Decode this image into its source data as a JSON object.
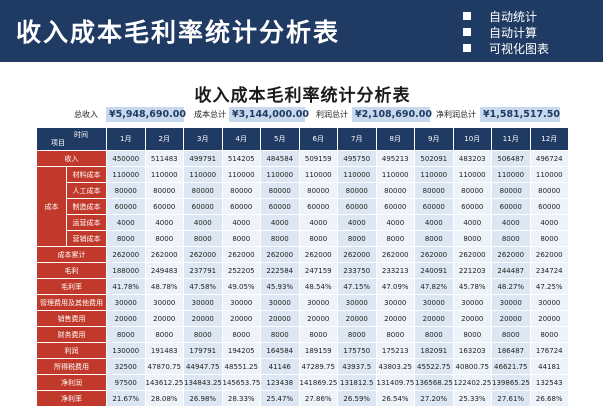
{
  "banner": {
    "title": "收入成本毛利率统计分析表",
    "features": [
      "自动统计",
      "自动计算",
      "可视化图表"
    ]
  },
  "sheet": {
    "title": "收入成本毛利率统计分析表",
    "summary": {
      "revenue_label": "总收入",
      "revenue_value": "¥5,948,690.00",
      "cost_label": "成本总计",
      "cost_value": "¥3,144,000.00",
      "gross_label": "利润总计",
      "gross_value": "¥2,108,690.00",
      "net_label": "净利润总计",
      "net_value": "¥1,581,517.50"
    },
    "header": {
      "corner_top": "时间",
      "corner_bottom": "项目",
      "months": [
        "1月",
        "2月",
        "3月",
        "4月",
        "5月",
        "6月",
        "7月",
        "8月",
        "9月",
        "10月",
        "11月",
        "12月"
      ]
    },
    "cost_group_label": "成本",
    "rows": [
      {
        "label": "收入",
        "values": [
          "450000",
          "511483",
          "499791",
          "514205",
          "484584",
          "509159",
          "495750",
          "495213",
          "502091",
          "483203",
          "506487",
          "496724"
        ]
      },
      {
        "label": "材料成本",
        "values": [
          "110000",
          "110000",
          "110000",
          "110000",
          "110000",
          "110000",
          "110000",
          "110000",
          "110000",
          "110000",
          "110000",
          "110000"
        ]
      },
      {
        "label": "人工成本",
        "values": [
          "80000",
          "80000",
          "80000",
          "80000",
          "80000",
          "80000",
          "80000",
          "80000",
          "80000",
          "80000",
          "80000",
          "80000"
        ]
      },
      {
        "label": "制造成本",
        "values": [
          "60000",
          "60000",
          "60000",
          "60000",
          "60000",
          "60000",
          "60000",
          "60000",
          "60000",
          "60000",
          "60000",
          "60000"
        ]
      },
      {
        "label": "运营成本",
        "values": [
          "4000",
          "4000",
          "4000",
          "4000",
          "4000",
          "4000",
          "4000",
          "4000",
          "4000",
          "4000",
          "4000",
          "4000"
        ]
      },
      {
        "label": "营销成本",
        "values": [
          "8000",
          "8000",
          "8000",
          "8000",
          "8000",
          "8000",
          "8000",
          "8000",
          "8000",
          "8000",
          "8000",
          "8000"
        ]
      },
      {
        "label": "成本累计",
        "values": [
          "262000",
          "262000",
          "262000",
          "262000",
          "262000",
          "262000",
          "262000",
          "262000",
          "262000",
          "262000",
          "262000",
          "262000"
        ]
      },
      {
        "label": "毛利",
        "values": [
          "188000",
          "249483",
          "237791",
          "252205",
          "222584",
          "247159",
          "233750",
          "233213",
          "240091",
          "221203",
          "244487",
          "234724"
        ]
      },
      {
        "label": "毛利率",
        "values": [
          "41.78%",
          "48.78%",
          "47.58%",
          "49.05%",
          "45.93%",
          "48.54%",
          "47.15%",
          "47.09%",
          "47.82%",
          "45.78%",
          "48.27%",
          "47.25%"
        ]
      },
      {
        "label": "管理费用及其他费用",
        "values": [
          "30000",
          "30000",
          "30000",
          "30000",
          "30000",
          "30000",
          "30000",
          "30000",
          "30000",
          "30000",
          "30000",
          "30000"
        ]
      },
      {
        "label": "销售费用",
        "values": [
          "20000",
          "20000",
          "20000",
          "20000",
          "20000",
          "20000",
          "20000",
          "20000",
          "20000",
          "20000",
          "20000",
          "20000"
        ]
      },
      {
        "label": "财务费用",
        "values": [
          "8000",
          "8000",
          "8000",
          "8000",
          "8000",
          "8000",
          "8000",
          "8000",
          "8000",
          "8000",
          "8000",
          "8000"
        ]
      },
      {
        "label": "利润",
        "values": [
          "130000",
          "191483",
          "179791",
          "194205",
          "164584",
          "189159",
          "175750",
          "175213",
          "182091",
          "163203",
          "186487",
          "176724"
        ]
      },
      {
        "label": "所得税费用",
        "values": [
          "32500",
          "47870.75",
          "44947.75",
          "48551.25",
          "41146",
          "47289.75",
          "43937.5",
          "43803.25",
          "45522.75",
          "40800.75",
          "46621.75",
          "44181"
        ]
      },
      {
        "label": "净利润",
        "values": [
          "97500",
          "143612.25",
          "134843.25",
          "145653.75",
          "123438",
          "141869.25",
          "131812.5",
          "131409.75",
          "136568.25",
          "122402.25",
          "139865.25",
          "132543"
        ]
      },
      {
        "label": "净利率",
        "values": [
          "21.67%",
          "28.08%",
          "26.98%",
          "28.33%",
          "25.47%",
          "27.86%",
          "26.59%",
          "26.54%",
          "27.20%",
          "25.33%",
          "27.61%",
          "26.68%"
        ]
      }
    ]
  }
}
